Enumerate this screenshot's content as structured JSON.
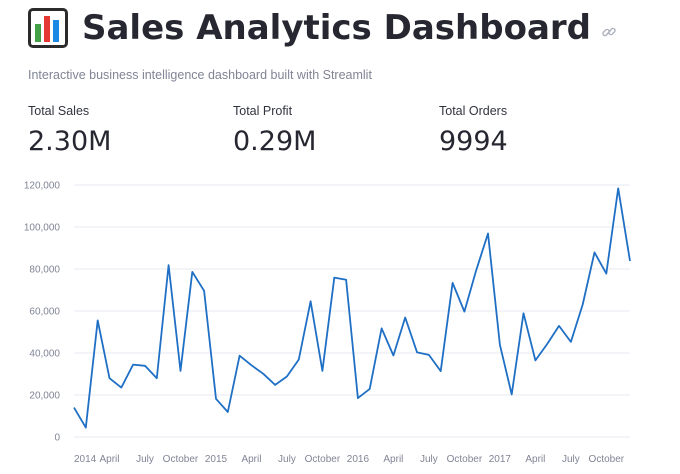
{
  "header": {
    "title": "Sales Analytics Dashboard",
    "icon": "bar-chart-emoji-icon",
    "link_icon": "link-icon"
  },
  "subtitle": "Interactive business intelligence dashboard built with Streamlit",
  "metrics": [
    {
      "label": "Total Sales",
      "value": "2.30M"
    },
    {
      "label": "Total Profit",
      "value": "0.29M"
    },
    {
      "label": "Total Orders",
      "value": "9994"
    }
  ],
  "colors": {
    "line": "#1f6fc5",
    "grid": "#e6e9ef",
    "text": "#262730",
    "muted": "#808495"
  },
  "chart_data": {
    "type": "line",
    "xlabel": "",
    "ylabel": "",
    "ylim": [
      0,
      120000
    ],
    "grid": true,
    "y_ticks": [
      {
        "value": 0,
        "label": "0"
      },
      {
        "value": 20000,
        "label": "20,000"
      },
      {
        "value": 40000,
        "label": "40,000"
      },
      {
        "value": 60000,
        "label": "60,000"
      },
      {
        "value": 80000,
        "label": "80,000"
      },
      {
        "value": 100000,
        "label": "100,000"
      },
      {
        "value": 120000,
        "label": "120,000"
      }
    ],
    "x_ticks": [
      {
        "x": "2014-01",
        "label": "2014"
      },
      {
        "x": "2014-04",
        "label": "April"
      },
      {
        "x": "2014-07",
        "label": "July"
      },
      {
        "x": "2014-10",
        "label": "October"
      },
      {
        "x": "2015-01",
        "label": "2015"
      },
      {
        "x": "2015-04",
        "label": "April"
      },
      {
        "x": "2015-07",
        "label": "July"
      },
      {
        "x": "2015-10",
        "label": "October"
      },
      {
        "x": "2016-01",
        "label": "2016"
      },
      {
        "x": "2016-04",
        "label": "April"
      },
      {
        "x": "2016-07",
        "label": "July"
      },
      {
        "x": "2016-10",
        "label": "October"
      },
      {
        "x": "2017-01",
        "label": "2017"
      },
      {
        "x": "2017-04",
        "label": "April"
      },
      {
        "x": "2017-07",
        "label": "July"
      },
      {
        "x": "2017-10",
        "label": "October"
      }
    ],
    "series": [
      {
        "x": [
          "2014-01",
          "2014-02",
          "2014-03",
          "2014-04",
          "2014-05",
          "2014-06",
          "2014-07",
          "2014-08",
          "2014-09",
          "2014-10",
          "2014-11",
          "2014-12",
          "2015-01",
          "2015-02",
          "2015-03",
          "2015-04",
          "2015-05",
          "2015-06",
          "2015-07",
          "2015-08",
          "2015-09",
          "2015-10",
          "2015-11",
          "2015-12",
          "2016-01",
          "2016-02",
          "2016-03",
          "2016-04",
          "2016-05",
          "2016-06",
          "2016-07",
          "2016-08",
          "2016-09",
          "2016-10",
          "2016-11",
          "2016-12",
          "2017-01",
          "2017-02",
          "2017-03",
          "2017-04",
          "2017-05",
          "2017-06",
          "2017-07",
          "2017-08",
          "2017-09",
          "2017-10",
          "2017-11",
          "2017-12"
        ],
        "values": [
          14000,
          4500,
          55500,
          28000,
          23500,
          34500,
          33900,
          28000,
          81800,
          31500,
          78600,
          69600,
          18200,
          11900,
          38700,
          34200,
          30100,
          24800,
          28800,
          36900,
          64600,
          31500,
          75900,
          74900,
          18500,
          22900,
          51700,
          38800,
          56900,
          40300,
          39100,
          31400,
          73400,
          59700,
          79400,
          96900,
          43900,
          20300,
          58900,
          36500,
          44300,
          52900,
          45300,
          63100,
          87900,
          77800,
          118400,
          83800
        ]
      }
    ]
  }
}
